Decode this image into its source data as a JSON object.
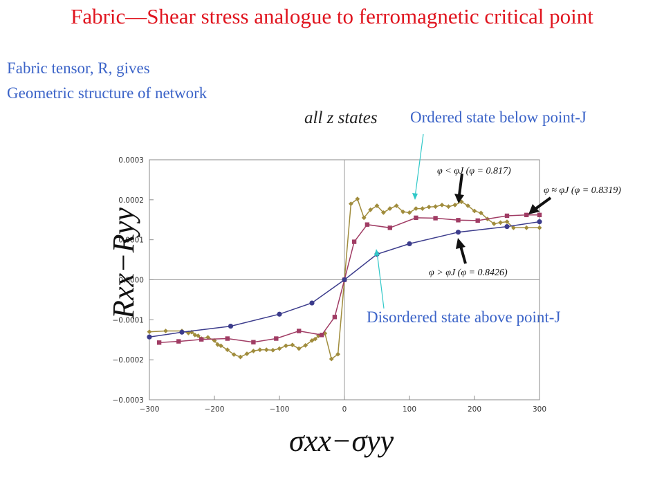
{
  "title": "Fabric—Shear stress analogue to ferromagnetic critical point",
  "notes": {
    "line1": "Fabric tensor, R, gives",
    "line2": "Geometric structure of network",
    "all_z": "all z states",
    "ordered": "Ordered state below point-J",
    "disordered": "Disordered state above point-J"
  },
  "chart_data": {
    "type": "line",
    "xlabel": "σxx−σyy",
    "ylabel": "Rxx−Ryy",
    "xlim": [
      -300,
      300
    ],
    "ylim": [
      -0.0003,
      0.0003
    ],
    "xticks": [
      -300,
      -200,
      -100,
      0,
      100,
      200,
      300
    ],
    "xtick_labels": [
      "−300",
      "−200",
      "−100",
      "0",
      "100",
      "200",
      "300"
    ],
    "yticks": [
      0.0003,
      0.0002,
      0.0001,
      0.0,
      -0.0001,
      -0.0002,
      -0.0003
    ],
    "ytick_labels": [
      "0.0003",
      "0.0002",
      "0.0001",
      "0.0000",
      "−0.0001",
      "−0.0002",
      "−0.0003"
    ],
    "grid": false,
    "annotations": [
      {
        "text": "φ < φJ (φ = 0.817)",
        "series": 0
      },
      {
        "text": "φ ≈ φJ (φ = 0.8319)",
        "series": 1
      },
      {
        "text": "φ > φJ (φ = 0.8426)",
        "series": 2
      }
    ],
    "series": [
      {
        "color": "#a08c3c",
        "marker": "diamond",
        "x": [
          -300,
          -275,
          -250,
          -240,
          -235,
          -230,
          -225,
          -220,
          -210,
          -200,
          -195,
          -190,
          -180,
          -170,
          -160,
          -150,
          -140,
          -130,
          -120,
          -110,
          -100,
          -90,
          -80,
          -70,
          -60,
          -50,
          -45,
          -40,
          -30,
          -20,
          -10,
          0,
          10,
          20,
          30,
          40,
          50,
          60,
          70,
          80,
          90,
          100,
          110,
          120,
          130,
          140,
          150,
          160,
          170,
          180,
          190,
          200,
          210,
          220,
          230,
          240,
          250,
          260,
          280,
          300
        ],
        "y": [
          -0.00013,
          -0.000128,
          -0.000128,
          -0.000133,
          -0.000131,
          -0.000138,
          -0.00014,
          -0.000147,
          -0.000144,
          -0.000152,
          -0.000162,
          -0.000165,
          -0.000175,
          -0.000187,
          -0.000193,
          -0.000185,
          -0.000178,
          -0.000175,
          -0.000175,
          -0.000176,
          -0.000172,
          -0.000165,
          -0.000163,
          -0.000172,
          -0.000164,
          -0.000152,
          -0.000148,
          -0.00014,
          -0.000134,
          -0.000198,
          -0.000186,
          0.0,
          0.00019,
          0.000202,
          0.000155,
          0.000175,
          0.000185,
          0.000168,
          0.000178,
          0.000185,
          0.00017,
          0.000168,
          0.000178,
          0.000178,
          0.000182,
          0.000183,
          0.000187,
          0.000183,
          0.000187,
          0.000195,
          0.000185,
          0.000172,
          0.000167,
          0.000152,
          0.00014,
          0.000143,
          0.000145,
          0.00013,
          0.00013,
          0.00013
        ]
      },
      {
        "color": "#a03c64",
        "marker": "square",
        "x": [
          -285,
          -255,
          -220,
          -180,
          -140,
          -105,
          -70,
          -35,
          -15,
          0,
          15,
          35,
          70,
          110,
          140,
          175,
          205,
          250,
          280,
          300
        ],
        "y": [
          -0.000157,
          -0.000154,
          -0.000149,
          -0.000147,
          -0.000156,
          -0.000147,
          -0.000128,
          -0.000138,
          -9.3e-05,
          0.0,
          9.5e-05,
          0.000138,
          0.00013,
          0.000155,
          0.000154,
          0.000149,
          0.000148,
          0.00016,
          0.000162,
          0.000162
        ]
      },
      {
        "color": "#3c3c8c",
        "marker": "circle",
        "x": [
          -300,
          -250,
          -175,
          -100,
          -50,
          0,
          50,
          100,
          175,
          250,
          300
        ],
        "y": [
          -0.000143,
          -0.000131,
          -0.000116,
          -8.6e-05,
          -5.8e-05,
          0.0,
          6.4e-05,
          9e-05,
          0.000119,
          0.000133,
          0.000145
        ]
      }
    ]
  }
}
